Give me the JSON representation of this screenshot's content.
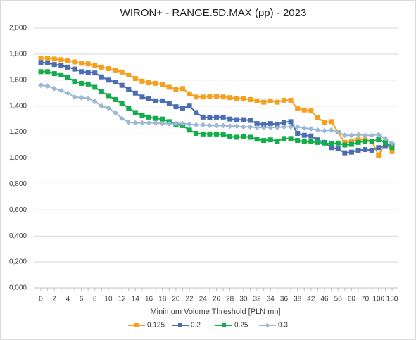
{
  "chart_data": {
    "type": "line",
    "title": "WIRON+ - RANGE.5D.MAX (pp) - 2023",
    "x_label": "Minimum Volume Threshold [PLN mn]",
    "categories": [
      "0",
      null,
      "2",
      null,
      "4",
      null,
      "6",
      null,
      "8",
      null,
      "10",
      null,
      "12",
      null,
      "14",
      null,
      "16",
      null,
      "18",
      null,
      "20",
      null,
      "22",
      null,
      "24",
      null,
      "26",
      null,
      "28",
      null,
      "30",
      null,
      "32",
      null,
      "34",
      null,
      "36",
      null,
      "38",
      null,
      "42",
      null,
      "46",
      null,
      "50",
      null,
      "60",
      null,
      "70",
      null,
      "100",
      null,
      "150"
    ],
    "ylim": [
      0,
      2000
    ],
    "yticks": [
      {
        "value": 0,
        "label": "0,000"
      },
      {
        "value": 200,
        "label": "0,200"
      },
      {
        "value": 400,
        "label": "0,400"
      },
      {
        "value": 600,
        "label": "0,600"
      },
      {
        "value": 800,
        "label": "0,800"
      },
      {
        "value": 1000,
        "label": "1,000"
      },
      {
        "value": 1200,
        "label": "1,200"
      },
      {
        "value": 1400,
        "label": "1,400"
      },
      {
        "value": 1600,
        "label": "1,600"
      },
      {
        "value": 1800,
        "label": "1,800"
      },
      {
        "value": 2000,
        "label": "2,000"
      }
    ],
    "grid": true,
    "legend": "bottom",
    "series": [
      {
        "name": "0.125",
        "color": "#f5a01e",
        "marker": "square",
        "values": [
          1770,
          1768,
          1762,
          1757,
          1750,
          1740,
          1730,
          1725,
          1712,
          1700,
          1688,
          1678,
          1662,
          1640,
          1612,
          1592,
          1580,
          1575,
          1565,
          1545,
          1530,
          1535,
          1495,
          1470,
          1470,
          1475,
          1475,
          1470,
          1465,
          1460,
          1460,
          1450,
          1440,
          1430,
          1440,
          1430,
          1445,
          1445,
          1380,
          1370,
          1365,
          1310,
          1275,
          1280,
          1200,
          1120,
          1130,
          1140,
          1140,
          1130,
          1020,
          1120,
          1050
        ]
      },
      {
        "name": "0.2",
        "color": "#4a6db3",
        "marker": "square",
        "values": [
          1735,
          1732,
          1720,
          1712,
          1700,
          1685,
          1665,
          1660,
          1655,
          1625,
          1600,
          1585,
          1560,
          1530,
          1500,
          1470,
          1455,
          1440,
          1440,
          1420,
          1395,
          1385,
          1400,
          1350,
          1315,
          1310,
          1315,
          1315,
          1300,
          1295,
          1295,
          1290,
          1265,
          1260,
          1265,
          1260,
          1275,
          1280,
          1190,
          1175,
          1170,
          1140,
          1120,
          1080,
          1070,
          1040,
          1045,
          1060,
          1065,
          1060,
          1080,
          1095,
          1100
        ]
      },
      {
        "name": "0.25",
        "color": "#13ad4a",
        "marker": "square",
        "values": [
          1665,
          1665,
          1650,
          1640,
          1620,
          1590,
          1575,
          1570,
          1545,
          1510,
          1480,
          1450,
          1420,
          1385,
          1350,
          1330,
          1315,
          1305,
          1300,
          1280,
          1260,
          1250,
          1215,
          1190,
          1185,
          1185,
          1185,
          1180,
          1165,
          1160,
          1165,
          1160,
          1145,
          1135,
          1140,
          1130,
          1150,
          1150,
          1135,
          1125,
          1125,
          1120,
          1115,
          1110,
          1115,
          1100,
          1105,
          1120,
          1130,
          1130,
          1140,
          1120,
          1080
        ]
      },
      {
        "name": "0.3",
        "color": "#9dbad9",
        "marker": "diamond",
        "values": [
          1560,
          1555,
          1535,
          1520,
          1500,
          1470,
          1465,
          1460,
          1435,
          1400,
          1385,
          1350,
          1305,
          1275,
          1270,
          1270,
          1270,
          1270,
          1265,
          1265,
          1265,
          1265,
          1260,
          1255,
          1255,
          1250,
          1250,
          1250,
          1245,
          1245,
          1240,
          1240,
          1235,
          1235,
          1235,
          1235,
          1240,
          1240,
          1240,
          1230,
          1225,
          1215,
          1210,
          1215,
          1200,
          1175,
          1175,
          1180,
          1175,
          1175,
          1180,
          1150,
          1110
        ]
      }
    ]
  }
}
